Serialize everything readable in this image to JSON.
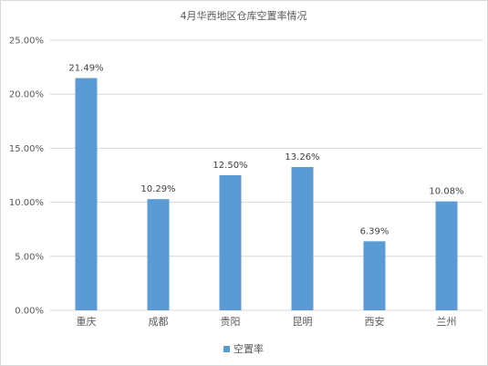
{
  "chart_data": {
    "type": "bar",
    "title": "4月华西地区仓库空置率情况",
    "categories": [
      "重庆",
      "成都",
      "贵阳",
      "昆明",
      "西安",
      "兰州"
    ],
    "series": [
      {
        "name": "空置率",
        "values": [
          21.49,
          10.29,
          12.5,
          13.26,
          6.39,
          10.08
        ],
        "color": "#5b9bd5"
      }
    ],
    "data_labels": [
      "21.49%",
      "10.29%",
      "12.50%",
      "13.26%",
      "6.39%",
      "10.08%"
    ],
    "y_ticks": [
      "0.00%",
      "5.00%",
      "10.00%",
      "15.00%",
      "20.00%",
      "25.00%"
    ],
    "ylim": [
      0,
      25
    ],
    "grid": true,
    "legend_position": "bottom"
  }
}
